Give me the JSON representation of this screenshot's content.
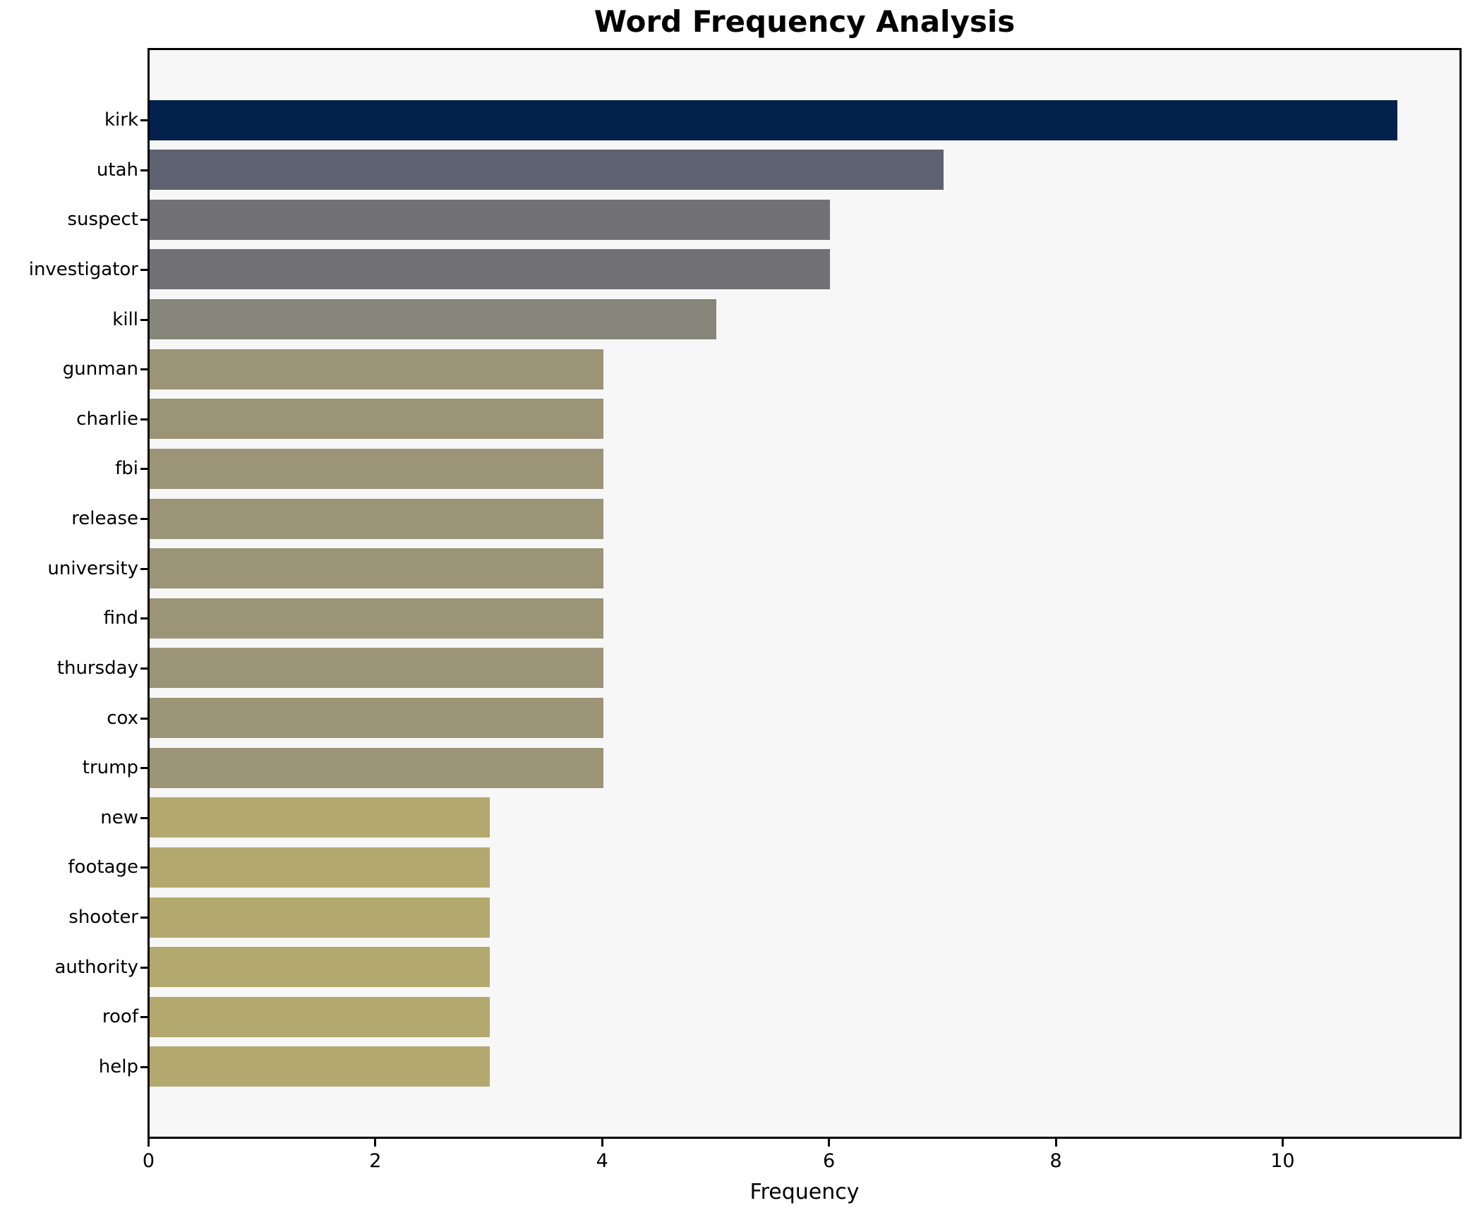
{
  "chart_data": {
    "type": "bar",
    "orientation": "horizontal",
    "title": "Word Frequency Analysis",
    "xlabel": "Frequency",
    "ylabel": "",
    "categories": [
      "kirk",
      "utah",
      "suspect",
      "investigator",
      "kill",
      "gunman",
      "charlie",
      "fbi",
      "release",
      "university",
      "find",
      "thursday",
      "cox",
      "trump",
      "new",
      "footage",
      "shooter",
      "authority",
      "roof",
      "help"
    ],
    "values": [
      11,
      7,
      6,
      6,
      5,
      4,
      4,
      4,
      4,
      4,
      4,
      4,
      4,
      4,
      3,
      3,
      3,
      3,
      3,
      3
    ],
    "bar_colors": [
      "#02214d",
      "#5e6270",
      "#717176",
      "#717176",
      "#87867b",
      "#9c9476",
      "#9c9476",
      "#9c9476",
      "#9c9476",
      "#9c9476",
      "#9c9476",
      "#9c9476",
      "#9c9476",
      "#9c9476",
      "#b3a96e",
      "#b3a96e",
      "#b3a96e",
      "#b3a96e",
      "#b3a96e",
      "#b3a96e"
    ],
    "xticks": [
      0,
      2,
      4,
      6,
      8,
      10
    ],
    "xlim": [
      0,
      11.55
    ],
    "grid": false,
    "legend_position": "none",
    "axes_background": "#f7f7f7",
    "figure_background": "#ffffff",
    "spine_color": "#000000",
    "text_color": "#000000"
  }
}
